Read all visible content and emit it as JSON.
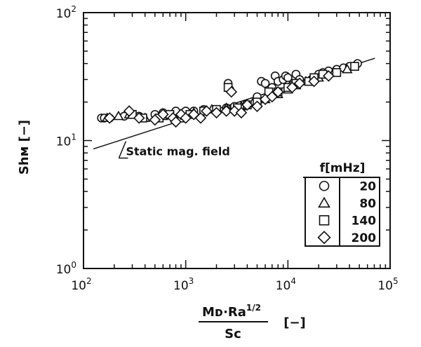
{
  "chart_data": {
    "type": "scatter",
    "xscale": "log",
    "yscale": "log",
    "xlim": [
      100,
      100000
    ],
    "ylim": [
      1,
      100
    ],
    "grid": false,
    "legend_placement": "right-center",
    "x_ticks": [
      {
        "value": 100,
        "base": "10",
        "exp": "2"
      },
      {
        "value": 1000,
        "base": "10",
        "exp": "3"
      },
      {
        "value": 10000,
        "base": "10",
        "exp": "4"
      },
      {
        "value": 100000,
        "base": "10",
        "exp": "5"
      }
    ],
    "y_ticks": [
      {
        "value": 1,
        "base": "10",
        "exp": "0"
      },
      {
        "value": 10,
        "base": "10",
        "exp": "1"
      },
      {
        "value": 100,
        "base": "10",
        "exp": "2"
      }
    ],
    "ylabel": "Shм [−]",
    "xlabel": {
      "numerator": "Mᴅ·Ra",
      "numerator_exp": "1/2",
      "denominator": "Sc",
      "unit": "[−]"
    },
    "legend": {
      "title": "f[mHz]",
      "entries": [
        {
          "marker": "circle",
          "label": "20"
        },
        {
          "marker": "triangle",
          "label": "80"
        },
        {
          "marker": "square",
          "label": "140"
        },
        {
          "marker": "diamond",
          "label": "200"
        }
      ]
    },
    "reference_line": {
      "label": "Static mag. field",
      "points": [
        [
          125,
          8.6
        ],
        [
          71000,
          44
        ]
      ]
    },
    "series": [
      {
        "marker": "circle",
        "name": "20",
        "points": [
          [
            150,
            15
          ],
          [
            160,
            15
          ],
          [
            180,
            15
          ],
          [
            250,
            15.5
          ],
          [
            300,
            16
          ],
          [
            350,
            15.5
          ],
          [
            500,
            16
          ],
          [
            600,
            16.5
          ],
          [
            800,
            17
          ],
          [
            1000,
            17
          ],
          [
            1200,
            17
          ],
          [
            1500,
            17.5
          ],
          [
            2000,
            17.5
          ],
          [
            2500,
            18
          ],
          [
            2600,
            28
          ],
          [
            2700,
            25
          ],
          [
            3000,
            18.5
          ],
          [
            3500,
            18
          ],
          [
            4000,
            19
          ],
          [
            5000,
            22
          ],
          [
            5500,
            29
          ],
          [
            6000,
            28
          ],
          [
            7000,
            26
          ],
          [
            7500,
            32
          ],
          [
            8000,
            29
          ],
          [
            9000,
            30
          ],
          [
            9500,
            32
          ],
          [
            10000,
            31
          ],
          [
            11000,
            27
          ],
          [
            12000,
            33
          ],
          [
            13000,
            30
          ],
          [
            17000,
            30
          ],
          [
            20000,
            33
          ],
          [
            22000,
            34
          ],
          [
            25000,
            35
          ],
          [
            30000,
            36
          ],
          [
            35000,
            37
          ],
          [
            40000,
            38
          ],
          [
            48000,
            40
          ]
        ]
      },
      {
        "marker": "triangle",
        "name": "80",
        "points": [
          [
            170,
            15
          ],
          [
            220,
            15.5
          ],
          [
            280,
            16
          ],
          [
            400,
            15
          ],
          [
            600,
            15.5
          ],
          [
            900,
            16
          ],
          [
            1200,
            16.5
          ],
          [
            1800,
            17.5
          ],
          [
            2500,
            18
          ],
          [
            3500,
            18.5
          ],
          [
            4500,
            19.5
          ],
          [
            6000,
            21
          ],
          [
            8000,
            23
          ],
          [
            10000,
            25
          ],
          [
            12000,
            27
          ],
          [
            15000,
            29
          ],
          [
            20000,
            31
          ],
          [
            28000,
            34
          ],
          [
            38000,
            36
          ]
        ]
      },
      {
        "marker": "square",
        "name": "140",
        "points": [
          [
            300,
            16
          ],
          [
            380,
            15
          ],
          [
            550,
            15
          ],
          [
            700,
            16
          ],
          [
            900,
            15
          ],
          [
            1100,
            16
          ],
          [
            1500,
            17
          ],
          [
            2000,
            17.5
          ],
          [
            2600,
            26
          ],
          [
            3200,
            18
          ],
          [
            4000,
            19
          ],
          [
            5000,
            20
          ],
          [
            6500,
            24
          ],
          [
            8000,
            24
          ],
          [
            10000,
            26
          ],
          [
            12000,
            28
          ],
          [
            16000,
            29
          ],
          [
            18000,
            31
          ],
          [
            22000,
            33
          ],
          [
            30000,
            34
          ],
          [
            45000,
            38
          ]
        ]
      },
      {
        "marker": "diamond",
        "name": "200",
        "points": [
          [
            180,
            15
          ],
          [
            280,
            17
          ],
          [
            350,
            15
          ],
          [
            500,
            14.5
          ],
          [
            600,
            16
          ],
          [
            750,
            15
          ],
          [
            800,
            14
          ],
          [
            900,
            16
          ],
          [
            1000,
            15
          ],
          [
            1200,
            16
          ],
          [
            1400,
            15
          ],
          [
            1600,
            17
          ],
          [
            2000,
            16.5
          ],
          [
            2500,
            17
          ],
          [
            2800,
            24
          ],
          [
            3000,
            17
          ],
          [
            3500,
            16.5
          ],
          [
            4000,
            19
          ],
          [
            5000,
            18.5
          ],
          [
            6000,
            21
          ],
          [
            7000,
            22
          ],
          [
            8000,
            24
          ],
          [
            11000,
            26
          ],
          [
            13000,
            28
          ],
          [
            18000,
            29
          ],
          [
            25000,
            32
          ]
        ]
      }
    ]
  }
}
